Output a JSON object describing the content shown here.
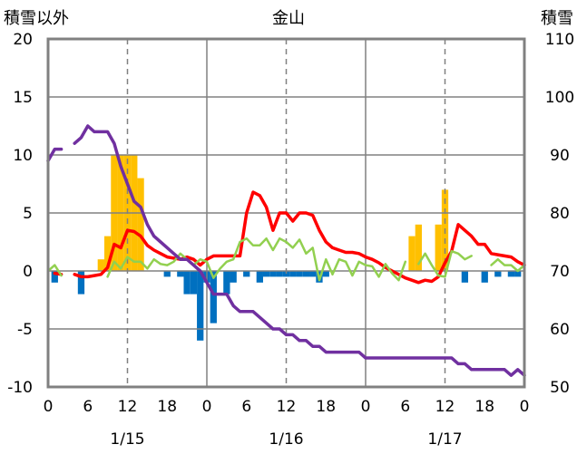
{
  "chart_data": {
    "type": "bar",
    "title": "金山",
    "left_axis": {
      "label": "積雪以外",
      "ylim": [
        -10,
        20
      ],
      "ticks": [
        "20",
        "15",
        "10",
        "5",
        "0",
        "-5",
        "-10"
      ]
    },
    "right_axis": {
      "label": "積雪",
      "ylim": [
        50,
        110
      ],
      "ticks": [
        "110",
        "100",
        "90",
        "80",
        "70",
        "60",
        "50"
      ]
    },
    "x_hour_ticks": [
      "0",
      "6",
      "12",
      "18",
      "0",
      "6",
      "12",
      "18",
      "0",
      "6",
      "12",
      "18",
      "0"
    ],
    "x_day_labels": [
      "1/15",
      "1/16",
      "1/17"
    ],
    "grid": "dashed vertical at 12h and day boundaries",
    "colors": {
      "precip_bar": "#ffc000",
      "negative_bar": "#0070c0",
      "temperature_line": "#ff0000",
      "green_line": "#92d050",
      "snow_depth_line": "#7030a0",
      "frame": "#808080"
    },
    "series": [
      {
        "kind": "bar",
        "axis": "left",
        "color": "#ffc000",
        "values": [
          [
            8,
            1
          ],
          [
            9,
            3
          ],
          [
            10,
            10
          ],
          [
            11,
            10
          ],
          [
            12,
            10
          ],
          [
            13,
            10
          ],
          [
            14,
            8
          ],
          [
            55,
            3
          ],
          [
            56,
            4
          ],
          [
            59,
            4
          ],
          [
            60,
            7
          ]
        ]
      },
      {
        "kind": "bar",
        "axis": "left",
        "color": "#0070c0",
        "values": [
          [
            1,
            -1
          ],
          [
            5,
            -2
          ],
          [
            18,
            -0.5
          ],
          [
            20,
            -0.5
          ],
          [
            21,
            -2
          ],
          [
            22,
            -2
          ],
          [
            23,
            -6
          ],
          [
            24,
            -1
          ],
          [
            25,
            -4.5
          ],
          [
            27,
            -2
          ],
          [
            28,
            -1
          ],
          [
            30,
            -0.5
          ],
          [
            32,
            -1
          ],
          [
            33,
            -0.5
          ],
          [
            34,
            -0.5
          ],
          [
            35,
            -0.5
          ],
          [
            36,
            -0.5
          ],
          [
            37,
            -0.5
          ],
          [
            38,
            -0.5
          ],
          [
            39,
            -0.5
          ],
          [
            40,
            -0.5
          ],
          [
            41,
            -1
          ],
          [
            42,
            -0.5
          ],
          [
            63,
            -1
          ],
          [
            66,
            -1
          ],
          [
            68,
            -0.5
          ],
          [
            70,
            -0.5
          ],
          [
            71,
            -0.5
          ]
        ]
      },
      {
        "kind": "line",
        "axis": "left",
        "color": "#ff0000",
        "segments": [
          [
            [
              1,
              -0.2
            ],
            [
              2,
              -0.3
            ]
          ],
          [
            [
              4,
              -0.3
            ],
            [
              5,
              -0.5
            ],
            [
              6,
              -0.5
            ],
            [
              7,
              -0.4
            ],
            [
              8,
              -0.3
            ],
            [
              9,
              0.3
            ],
            [
              10,
              2.3
            ],
            [
              11,
              2.0
            ],
            [
              12,
              3.5
            ],
            [
              13,
              3.4
            ],
            [
              14,
              3.0
            ],
            [
              15,
              2.2
            ],
            [
              16,
              1.8
            ],
            [
              17,
              1.5
            ],
            [
              18,
              1.2
            ],
            [
              19,
              1.1
            ],
            [
              20,
              1.0
            ],
            [
              21,
              1.2
            ],
            [
              22,
              1.0
            ],
            [
              23,
              0.5
            ],
            [
              24,
              1.0
            ],
            [
              25,
              1.3
            ],
            [
              26,
              1.3
            ],
            [
              27,
              1.3
            ],
            [
              28,
              1.3
            ],
            [
              29,
              1.3
            ],
            [
              30,
              5.0
            ],
            [
              31,
              6.8
            ],
            [
              32,
              6.5
            ],
            [
              33,
              5.5
            ],
            [
              34,
              3.5
            ],
            [
              35,
              5.0
            ],
            [
              36,
              5.0
            ],
            [
              37,
              4.3
            ],
            [
              38,
              5.0
            ],
            [
              39,
              5.0
            ],
            [
              40,
              4.8
            ],
            [
              41,
              3.5
            ],
            [
              42,
              2.5
            ],
            [
              43,
              2.0
            ],
            [
              44,
              1.8
            ],
            [
              45,
              1.6
            ],
            [
              46,
              1.6
            ],
            [
              47,
              1.5
            ],
            [
              48,
              1.2
            ],
            [
              49,
              1.0
            ],
            [
              50,
              0.7
            ],
            [
              51,
              0.3
            ],
            [
              52,
              0.0
            ],
            [
              53,
              -0.3
            ],
            [
              54,
              -0.6
            ],
            [
              55,
              -0.8
            ],
            [
              56,
              -1.0
            ],
            [
              57,
              -0.8
            ],
            [
              58,
              -0.9
            ],
            [
              59,
              -0.5
            ],
            [
              60,
              0.7
            ],
            [
              61,
              1.7
            ],
            [
              62,
              4.0
            ],
            [
              63,
              3.5
            ],
            [
              64,
              3.0
            ],
            [
              65,
              2.3
            ],
            [
              66,
              2.3
            ],
            [
              67,
              1.5
            ],
            [
              68,
              1.4
            ],
            [
              69,
              1.3
            ],
            [
              70,
              1.2
            ],
            [
              71,
              0.8
            ],
            [
              72,
              0.5
            ]
          ]
        ]
      },
      {
        "kind": "line",
        "axis": "left",
        "color": "#92d050",
        "segments": [
          [
            [
              0,
              0.0
            ],
            [
              1,
              0.5
            ],
            [
              2,
              -0.4
            ]
          ],
          [
            [
              9,
              -0.5
            ],
            [
              10,
              0.8
            ],
            [
              11,
              0.2
            ],
            [
              12,
              1.2
            ],
            [
              13,
              0.8
            ],
            [
              14,
              0.8
            ],
            [
              15,
              0.2
            ],
            [
              16,
              1.0
            ],
            [
              17,
              0.6
            ],
            [
              18,
              0.5
            ],
            [
              19,
              0.8
            ],
            [
              20,
              1.5
            ],
            [
              21,
              1.0
            ],
            [
              22,
              0.5
            ],
            [
              23,
              1.0
            ],
            [
              24,
              0.8
            ],
            [
              25,
              -0.6
            ],
            [
              26,
              0.2
            ],
            [
              27,
              0.8
            ],
            [
              28,
              1.0
            ],
            [
              29,
              2.5
            ],
            [
              30,
              2.8
            ],
            [
              31,
              2.2
            ],
            [
              32,
              2.2
            ],
            [
              33,
              2.8
            ],
            [
              34,
              1.8
            ],
            [
              35,
              2.8
            ],
            [
              36,
              2.5
            ],
            [
              37,
              2.0
            ],
            [
              38,
              2.7
            ],
            [
              39,
              1.5
            ],
            [
              40,
              2.0
            ],
            [
              41,
              -0.8
            ],
            [
              42,
              1.0
            ],
            [
              43,
              -0.3
            ],
            [
              44,
              1.0
            ],
            [
              45,
              0.8
            ],
            [
              46,
              -0.4
            ],
            [
              47,
              0.8
            ],
            [
              48,
              0.5
            ],
            [
              49,
              0.4
            ],
            [
              50,
              -0.5
            ],
            [
              51,
              0.6
            ],
            [
              52,
              -0.2
            ],
            [
              53,
              -0.8
            ],
            [
              54,
              0.8
            ]
          ],
          [
            [
              56,
              0.6
            ],
            [
              57,
              1.5
            ],
            [
              58,
              0.5
            ],
            [
              59,
              -0.4
            ],
            [
              60,
              -0.5
            ],
            [
              61,
              1.7
            ],
            [
              62,
              1.5
            ],
            [
              63,
              1.0
            ],
            [
              64,
              1.3
            ]
          ],
          [
            [
              67,
              0.5
            ],
            [
              68,
              1.0
            ],
            [
              69,
              0.5
            ],
            [
              70,
              0.5
            ],
            [
              71,
              0.0
            ],
            [
              72,
              0.5
            ]
          ]
        ]
      },
      {
        "kind": "line",
        "axis": "right",
        "color": "#7030a0",
        "segments": [
          [
            [
              0,
              89
            ],
            [
              1,
              91
            ],
            [
              2,
              91
            ]
          ],
          [
            [
              4,
              92
            ],
            [
              5,
              93
            ],
            [
              6,
              95
            ],
            [
              7,
              94
            ],
            [
              8,
              94
            ],
            [
              9,
              94
            ],
            [
              10,
              92
            ],
            [
              11,
              88
            ],
            [
              12,
              85
            ],
            [
              13,
              82
            ],
            [
              14,
              81
            ],
            [
              15,
              78
            ],
            [
              16,
              76
            ],
            [
              17,
              75
            ],
            [
              18,
              74
            ],
            [
              19,
              73
            ],
            [
              20,
              72
            ],
            [
              21,
              72
            ],
            [
              22,
              71
            ],
            [
              23,
              70
            ],
            [
              24,
              68
            ],
            [
              25,
              66
            ],
            [
              26,
              66
            ],
            [
              27,
              66
            ],
            [
              28,
              64
            ],
            [
              29,
              63
            ],
            [
              30,
              63
            ],
            [
              31,
              63
            ],
            [
              32,
              62
            ],
            [
              33,
              61
            ],
            [
              34,
              60
            ],
            [
              35,
              60
            ],
            [
              36,
              59
            ],
            [
              37,
              59
            ],
            [
              38,
              58
            ],
            [
              39,
              58
            ],
            [
              40,
              57
            ],
            [
              41,
              57
            ],
            [
              42,
              56
            ],
            [
              43,
              56
            ],
            [
              44,
              56
            ],
            [
              45,
              56
            ],
            [
              46,
              56
            ],
            [
              47,
              56
            ],
            [
              48,
              55
            ],
            [
              49,
              55
            ],
            [
              50,
              55
            ],
            [
              51,
              55
            ],
            [
              52,
              55
            ],
            [
              53,
              55
            ],
            [
              54,
              55
            ],
            [
              55,
              55
            ],
            [
              56,
              55
            ],
            [
              57,
              55
            ],
            [
              58,
              55
            ],
            [
              59,
              55
            ],
            [
              60,
              55
            ],
            [
              61,
              55
            ],
            [
              62,
              54
            ],
            [
              63,
              54
            ],
            [
              64,
              53
            ],
            [
              65,
              53
            ],
            [
              66,
              53
            ],
            [
              67,
              53
            ],
            [
              68,
              53
            ],
            [
              69,
              53
            ],
            [
              70,
              52
            ],
            [
              71,
              53
            ],
            [
              72,
              52
            ]
          ]
        ]
      }
    ]
  }
}
